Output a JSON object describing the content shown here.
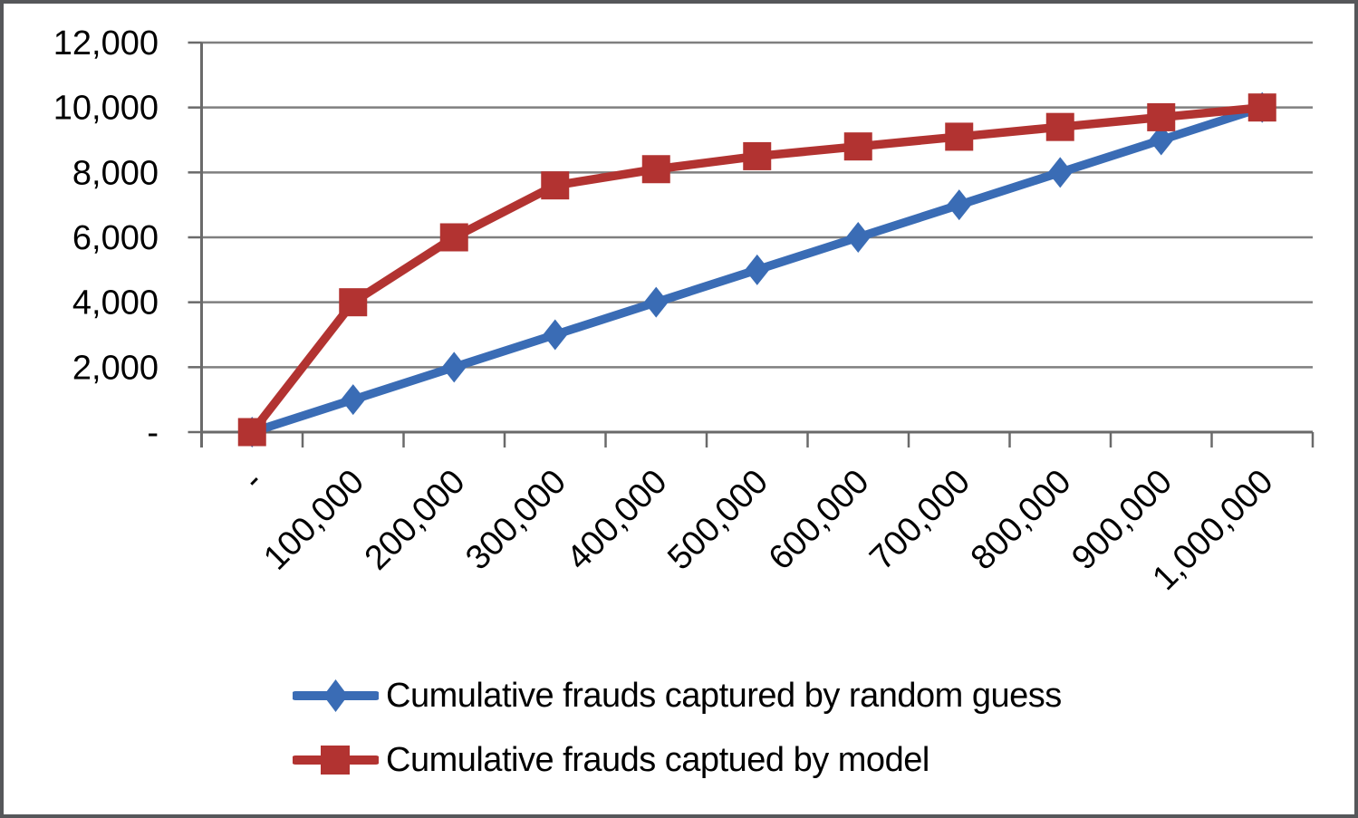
{
  "chart_data": {
    "type": "line",
    "title": "",
    "xlabel": "",
    "ylabel": "",
    "categories": [
      "-",
      "100,000",
      "200,000",
      "300,000",
      "400,000",
      "500,000",
      "600,000",
      "700,000",
      "800,000",
      "900,000",
      "1,000,000"
    ],
    "x_values": [
      0,
      100000,
      200000,
      300000,
      400000,
      500000,
      600000,
      700000,
      800000,
      900000,
      1000000
    ],
    "ylim": [
      0,
      12000
    ],
    "y_tick_values": [
      0,
      2000,
      4000,
      6000,
      8000,
      10000,
      12000
    ],
    "y_tick_labels": [
      "-",
      "2,000",
      "4,000",
      "6,000",
      "8,000",
      "10,000",
      "12,000"
    ],
    "grid": true,
    "legend_position": "bottom-left",
    "x_label_rotation_deg": -45,
    "series": [
      {
        "name": "Cumulative frauds captured by random guess",
        "marker": "diamond",
        "color": "#3A6CB5",
        "values": [
          0,
          1000,
          2000,
          3000,
          4000,
          5000,
          6000,
          7000,
          8000,
          9000,
          10000
        ]
      },
      {
        "name": "Cumulative frauds captued by model",
        "marker": "square",
        "color": "#B23331",
        "values": [
          0,
          4000,
          6000,
          7600,
          8100,
          8500,
          8800,
          9100,
          9400,
          9700,
          10000
        ]
      }
    ],
    "colors": {
      "gridline": "#7F7F7F",
      "axis": "#6A6A6A",
      "text": "#000000",
      "background": "#FFFFFF",
      "frame_border": "#56575A"
    }
  }
}
